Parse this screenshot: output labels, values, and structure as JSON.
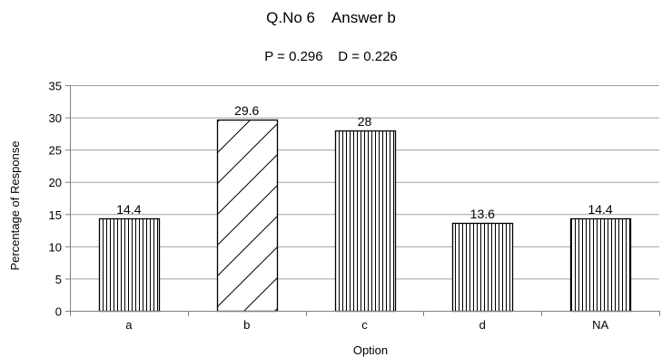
{
  "chart_data": {
    "type": "bar",
    "title": "Q.No 6    Answer b",
    "subtitle": "P = 0.296    D = 0.226",
    "xlabel": "Option",
    "ylabel": "Percentage of Response",
    "categories": [
      "a",
      "b",
      "c",
      "d",
      "NA"
    ],
    "values": [
      14.4,
      29.6,
      28,
      13.6,
      14.4
    ],
    "data_labels": [
      "14.4",
      "29.6",
      "28",
      "13.6",
      "14.4"
    ],
    "ylim": [
      0,
      35
    ],
    "yticks": [
      0,
      5,
      10,
      15,
      20,
      25,
      30,
      35
    ],
    "grid": true,
    "legend": "none",
    "bar_patterns": [
      "vertical-lines",
      "diagonal-lines",
      "vertical-lines",
      "vertical-lines",
      "vertical-lines"
    ],
    "colors": {
      "bar_stroke": "#000000",
      "bar_fill": "#ffffff",
      "grid": "#a0a0a0",
      "axis": "#808080"
    }
  }
}
